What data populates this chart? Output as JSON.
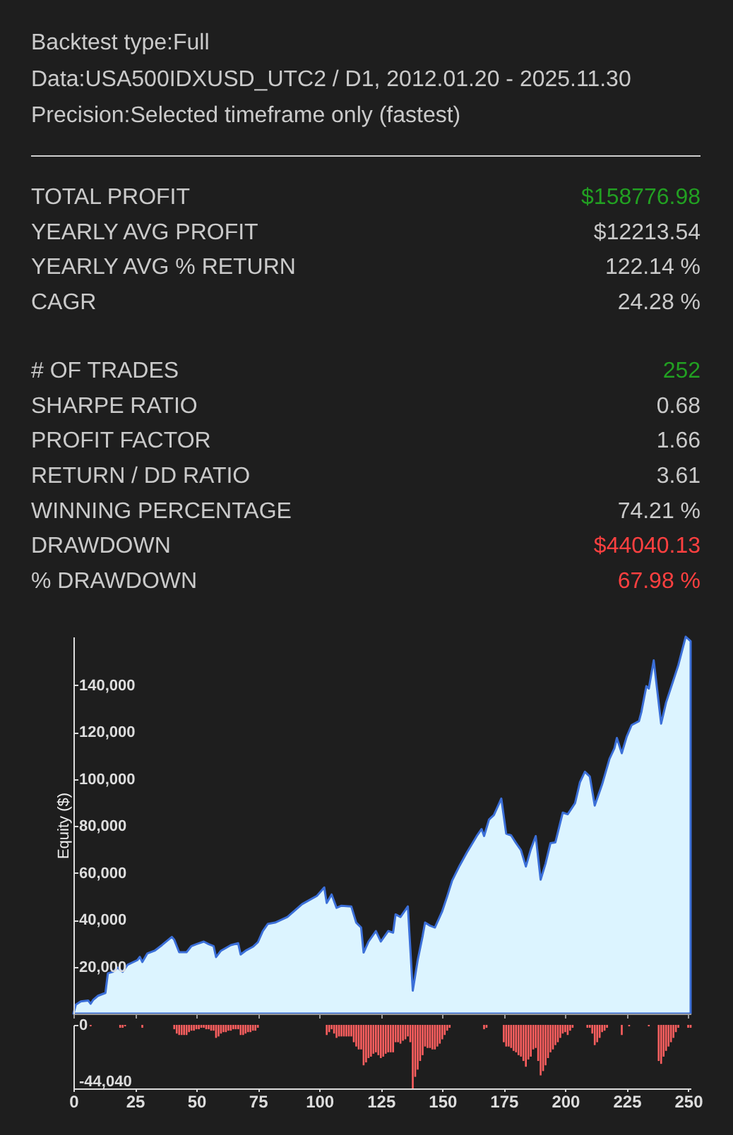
{
  "chart_data": [
    {
      "type": "other",
      "annotations": [
        "Backtest type:Full",
        "Data:USA500IDXUSD_UTC2 / D1, 2012.01.20 - 2025.11.30",
        "Precision:Selected timeframe only (fastest)"
      ],
      "categories": [
        "TOTAL PROFIT",
        "YEARLY AVG PROFIT",
        "YEARLY AVG % RETURN",
        "CAGR"
      ],
      "value_labels": [
        "$158776.98",
        "$12213.54",
        "122.14 %",
        "24.28 %"
      ],
      "colors": [
        "#22a022",
        "#cacaca",
        "#cacaca",
        "#cacaca"
      ]
    },
    {
      "type": "other",
      "categories": [
        "# OF TRADES",
        "SHARPE RATIO",
        "PROFIT FACTOR",
        "RETURN / DD RATIO",
        "WINNING PERCENTAGE",
        "DRAWDOWN",
        "% DRAWDOWN"
      ],
      "value_labels": [
        "252",
        "0.68",
        "1.66",
        "3.61",
        "74.21 %",
        "$44040.13",
        "67.98 %"
      ],
      "colors": [
        "#22a022",
        "#cacaca",
        "#cacaca",
        "#cacaca",
        "#cacaca",
        "#ff4040",
        "#ff4040"
      ]
    },
    {
      "type": "area",
      "ylabel": "Equity ($)",
      "x": [
        0,
        1,
        3,
        6,
        7,
        8,
        10,
        13,
        14,
        16,
        18,
        20,
        22,
        26,
        27,
        28,
        30,
        33,
        36,
        40,
        41,
        43,
        46,
        48,
        50,
        53,
        55,
        57,
        58,
        60,
        64,
        67,
        68,
        70,
        73,
        75,
        77,
        79,
        82,
        87,
        93,
        99,
        102,
        103,
        105,
        107,
        109,
        113,
        115,
        117,
        118,
        120,
        123,
        125,
        128,
        130,
        131,
        133,
        136,
        138,
        140,
        142,
        143,
        145,
        147,
        150,
        152,
        154,
        157,
        160,
        164,
        166,
        167,
        169,
        171,
        174,
        176,
        178,
        180,
        182,
        184,
        186,
        188,
        190,
        192,
        194,
        196,
        199,
        201,
        204,
        206,
        208,
        210,
        212,
        215,
        218,
        220,
        221,
        223,
        225,
        227,
        230,
        231,
        233,
        234,
        236,
        239,
        241,
        246,
        249,
        251
      ],
      "series": [
        {
          "type": "area",
          "color": "#dcf4ff",
          "values": [
            0,
            3800,
            5200,
            5600,
            4200,
            5800,
            7600,
            8800,
            17200,
            17800,
            19600,
            17800,
            20800,
            22800,
            24200,
            22000,
            25600,
            26800,
            29200,
            32700,
            31500,
            26200,
            26200,
            28800,
            29600,
            30700,
            29600,
            28800,
            24100,
            26800,
            29200,
            30000,
            25200,
            26800,
            28500,
            30400,
            35200,
            38200,
            38800,
            41200,
            46700,
            50200,
            53800,
            47200,
            50800,
            45100,
            46000,
            45700,
            38800,
            36700,
            26000,
            30700,
            35200,
            30700,
            35200,
            34500,
            42300,
            41200,
            45700,
            9800,
            22800,
            33000,
            38800,
            37500,
            36700,
            43700,
            50000,
            56700,
            63000,
            68700,
            75700,
            78700,
            75700,
            82700,
            84700,
            91700,
            76700,
            76000,
            72700,
            69700,
            62700,
            70000,
            75700,
            57100,
            64000,
            72700,
            73000,
            85700,
            85000,
            89700,
            98700,
            103100,
            101100,
            88700,
            97700,
            108600,
            113100,
            117500,
            111000,
            118100,
            123000,
            124700,
            128700,
            139600,
            138600,
            150600,
            123600,
            132600,
            148600,
            160700,
            158800
          ]
        }
      ],
      "xlim": [
        0,
        251
      ],
      "xticks": [
        0,
        25,
        50,
        75,
        100,
        125,
        150,
        175,
        200,
        225,
        250
      ],
      "ylim": [
        0,
        160700
      ],
      "yticks": [
        {
          "value": 20000,
          "label": "20,000"
        },
        {
          "value": 40000,
          "label": "40,000"
        },
        {
          "value": 60000,
          "label": "60,000"
        },
        {
          "value": 80000,
          "label": "80,000"
        },
        {
          "value": 100000,
          "label": "100,000"
        },
        {
          "value": 120000,
          "label": "120,000"
        },
        {
          "value": 140000,
          "label": "140,000"
        }
      ],
      "tick_labels": "y"
    },
    {
      "type": "bar",
      "x": [
        7,
        19,
        20,
        21,
        28,
        41,
        42,
        43,
        44,
        45,
        46,
        47,
        48,
        49,
        50,
        51,
        52,
        53,
        54,
        55,
        56,
        57,
        58,
        59,
        60,
        61,
        62,
        63,
        64,
        65,
        66,
        67,
        68,
        69,
        70,
        71,
        72,
        73,
        74,
        75,
        103,
        104,
        105,
        106,
        107,
        108,
        109,
        110,
        111,
        112,
        113,
        114,
        115,
        116,
        117,
        118,
        119,
        120,
        121,
        122,
        123,
        124,
        125,
        126,
        127,
        128,
        129,
        130,
        131,
        132,
        133,
        134,
        135,
        136,
        137,
        138,
        139,
        140,
        141,
        142,
        143,
        144,
        145,
        146,
        147,
        148,
        149,
        150,
        151,
        152,
        153,
        167,
        168,
        175,
        176,
        177,
        178,
        179,
        180,
        181,
        182,
        183,
        184,
        185,
        186,
        187,
        188,
        189,
        190,
        191,
        192,
        193,
        194,
        195,
        196,
        197,
        198,
        199,
        200,
        201,
        202,
        203,
        209,
        210,
        211,
        212,
        213,
        214,
        215,
        216,
        217,
        223,
        226,
        234,
        238,
        239,
        240,
        241,
        242,
        243,
        244,
        245,
        246,
        250,
        251
      ],
      "values": [
        -1000,
        -2000,
        -2000,
        -1000,
        -2000,
        -3000,
        -6000,
        -7000,
        -7000,
        -7000,
        -7000,
        -5000,
        -4000,
        -4000,
        -3000,
        -3000,
        -2000,
        -2000,
        -3000,
        -3000,
        -4000,
        -4000,
        -9000,
        -8000,
        -6000,
        -5000,
        -5000,
        -4000,
        -4000,
        -3000,
        -3000,
        -3000,
        -7000,
        -7000,
        -6000,
        -5000,
        -5000,
        -4000,
        -4000,
        -2000,
        -7000,
        -5000,
        -3000,
        -6000,
        -9000,
        -8000,
        -8000,
        -8000,
        -8000,
        -8000,
        -8000,
        -12000,
        -15000,
        -17000,
        -17000,
        -28000,
        -26000,
        -23000,
        -22000,
        -20000,
        -19000,
        -21000,
        -23000,
        -22000,
        -20000,
        -19000,
        -19000,
        -19000,
        -12000,
        -12000,
        -13000,
        -11000,
        -10000,
        -8000,
        -12000,
        -44040,
        -36000,
        -31000,
        -25000,
        -21000,
        -15000,
        -16000,
        -16000,
        -17000,
        -17000,
        -15000,
        -13000,
        -10000,
        -7000,
        -4000,
        -2000,
        -3000,
        -2000,
        -12000,
        -15000,
        -15000,
        -16000,
        -18000,
        -19000,
        -21000,
        -22000,
        -25000,
        -29000,
        -24000,
        -22000,
        -17000,
        -16000,
        -25000,
        -35000,
        -32000,
        -28000,
        -23000,
        -19000,
        -17000,
        -14000,
        -12000,
        -9000,
        -6000,
        -5000,
        -7000,
        -4000,
        -2000,
        -2000,
        -2000,
        -6000,
        -14000,
        -12000,
        -9000,
        -5000,
        -4000,
        -2000,
        -7000,
        -1000,
        -1000,
        -25000,
        -27000,
        -22000,
        -18000,
        -15000,
        -12000,
        -9000,
        -5000,
        -2000,
        -2000,
        -2000
      ],
      "color": "#ff5f5f",
      "xlim": [
        0,
        251
      ],
      "xticks": [
        0,
        25,
        50,
        75,
        100,
        125,
        150,
        175,
        200,
        225,
        250
      ],
      "ylim": [
        -44040,
        0
      ],
      "yticks": [
        0,
        {
          "value": -44040,
          "label": "-44,040"
        }
      ]
    }
  ]
}
